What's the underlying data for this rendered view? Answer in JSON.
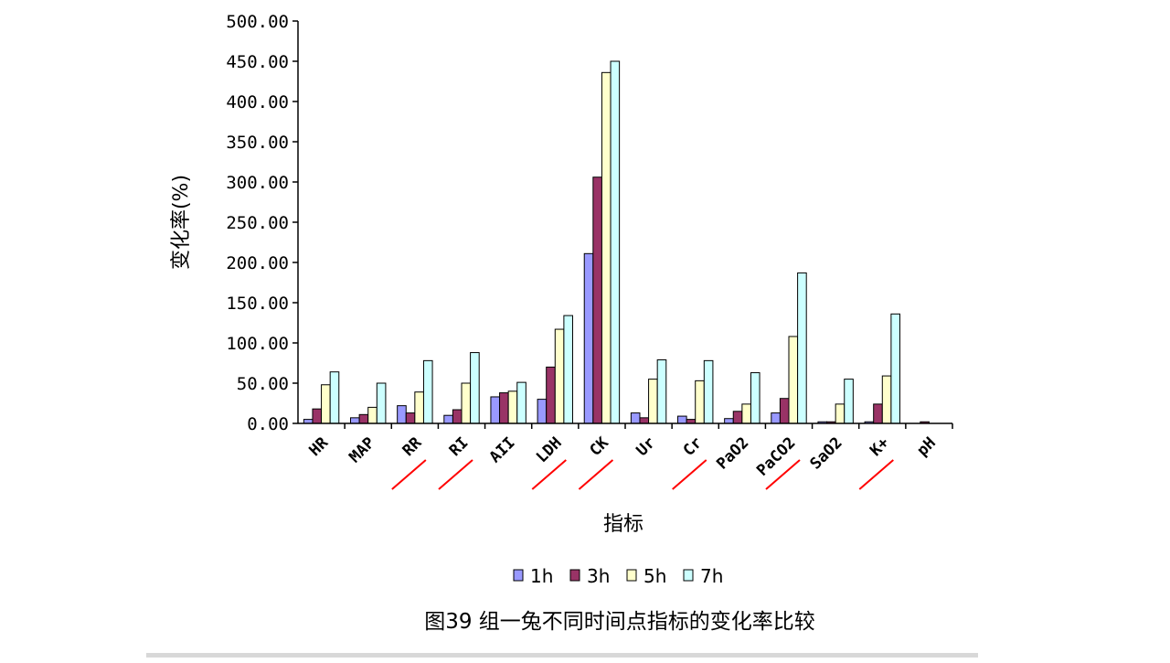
{
  "chart_data": {
    "type": "bar",
    "title": "",
    "xlabel": "指标",
    "ylabel": "变化率(%)",
    "ylim": [
      0,
      500
    ],
    "yticks": [
      "0.00",
      "50.00",
      "100.00",
      "150.00",
      "200.00",
      "250.00",
      "300.00",
      "350.00",
      "400.00",
      "450.00",
      "500.00"
    ],
    "grid": false,
    "legend_placement": "bottom",
    "categories": [
      "HR",
      "MAP",
      "RR",
      "RI",
      "AII",
      "LDH",
      "CK",
      "Ur",
      "Cr",
      "PaO2",
      "PaCO2",
      "SaO2",
      "K+",
      "pH"
    ],
    "underlined_categories": [
      "RR",
      "RI",
      "LDH",
      "CK",
      "Cr",
      "PaCO2",
      "K+"
    ],
    "underline_color": "#ff0000",
    "series": [
      {
        "name": "1h",
        "color": "#9999ff",
        "values": [
          5,
          7,
          22,
          10,
          33,
          30,
          211,
          13,
          9,
          6,
          13,
          2,
          2,
          0
        ]
      },
      {
        "name": "3h",
        "color": "#993366",
        "values": [
          18,
          11,
          13,
          17,
          38,
          70,
          306,
          7,
          5,
          15,
          31,
          2,
          24,
          2
        ]
      },
      {
        "name": "5h",
        "color": "#ffffcc",
        "values": [
          48,
          20,
          39,
          50,
          40,
          117,
          436,
          55,
          53,
          24,
          108,
          24,
          59,
          0
        ]
      },
      {
        "name": "7h",
        "color": "#ccffff",
        "values": [
          64,
          50,
          78,
          88,
          51,
          134,
          450,
          79,
          78,
          63,
          187,
          55,
          136,
          0
        ]
      }
    ],
    "caption": "图39 组一兔不同时间点指标的变化率比较"
  }
}
